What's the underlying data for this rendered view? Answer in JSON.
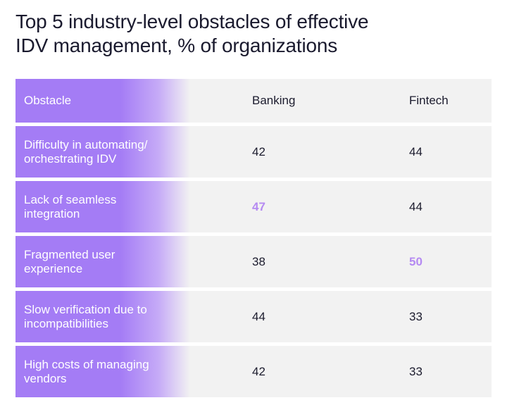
{
  "title_lines": [
    "Top 5 industry-level obstacles of effective",
    "IDV management, % of organizations"
  ],
  "colors": {
    "accent": "#a47cf5",
    "highlight_text": "#b58af2",
    "row_background": "#f2f2f2"
  },
  "chart_data": {
    "type": "table",
    "title": "Top 5 industry-level obstacles of effective IDV management, % of organizations",
    "columns": [
      "Obstacle",
      "Banking",
      "Fintech"
    ],
    "rows": [
      {
        "obstacle": "Difficulty in automating/ orchestrating IDV",
        "banking": "42",
        "fintech": "44"
      },
      {
        "obstacle": "Lack of seamless integration",
        "banking": "47",
        "fintech": "44"
      },
      {
        "obstacle": "Fragmented user experience",
        "banking": "38",
        "fintech": "50"
      },
      {
        "obstacle": "Slow verification due to incompatibilities",
        "banking": "44",
        "fintech": "33"
      },
      {
        "obstacle": "High costs of managing vendors",
        "banking": "42",
        "fintech": "33"
      }
    ],
    "highlighted": [
      {
        "row": 1,
        "column": "Banking"
      },
      {
        "row": 2,
        "column": "Fintech"
      }
    ]
  }
}
